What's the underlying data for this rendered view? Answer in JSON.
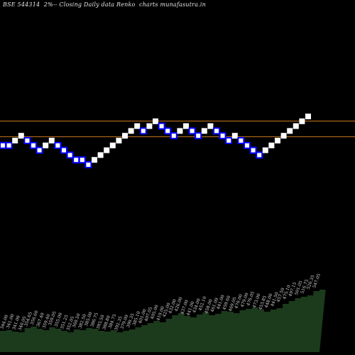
{
  "header": {
    "title": "BSE 544314  2%-- Closing Daily data Renko  charts munafasutra.in"
  },
  "colors": {
    "background": "#000000",
    "up_brick": "#ffffff",
    "down_brick": "#0000ff",
    "down_brick_fill": "#ffffff",
    "level_line": "#c8781e",
    "volume_fill": "#1c3a1c",
    "label": "#d8d8d8"
  },
  "chart_data": {
    "type": "renko",
    "brick_size_pct": 2,
    "levels": [
      489.4,
      460.1
    ],
    "bricks": [
      {
        "dir": "down",
        "price": 444.0
      },
      {
        "dir": "down",
        "price": 444.0
      },
      {
        "dir": "up",
        "price": 453.0
      },
      {
        "dir": "up",
        "price": 462.0
      },
      {
        "dir": "down",
        "price": 453.0
      },
      {
        "dir": "down",
        "price": 444.0
      },
      {
        "dir": "down",
        "price": 435.0
      },
      {
        "dir": "up",
        "price": 444.0
      },
      {
        "dir": "up",
        "price": 453.0
      },
      {
        "dir": "down",
        "price": 444.0
      },
      {
        "dir": "down",
        "price": 435.0
      },
      {
        "dir": "down",
        "price": 426.0
      },
      {
        "dir": "down",
        "price": 417.0
      },
      {
        "dir": "down",
        "price": 417.0
      },
      {
        "dir": "down",
        "price": 408.0
      },
      {
        "dir": "up",
        "price": 417.0
      },
      {
        "dir": "up",
        "price": 426.0
      },
      {
        "dir": "up",
        "price": 435.0
      },
      {
        "dir": "up",
        "price": 444.0
      },
      {
        "dir": "up",
        "price": 453.0
      },
      {
        "dir": "up",
        "price": 462.0
      },
      {
        "dir": "up",
        "price": 471.0
      },
      {
        "dir": "up",
        "price": 480.0
      },
      {
        "dir": "down",
        "price": 471.0
      },
      {
        "dir": "up",
        "price": 480.0
      },
      {
        "dir": "up",
        "price": 489.0
      },
      {
        "dir": "down",
        "price": 480.0
      },
      {
        "dir": "down",
        "price": 471.0
      },
      {
        "dir": "down",
        "price": 462.0
      },
      {
        "dir": "up",
        "price": 471.0
      },
      {
        "dir": "up",
        "price": 480.0
      },
      {
        "dir": "down",
        "price": 471.0
      },
      {
        "dir": "down",
        "price": 462.0
      },
      {
        "dir": "up",
        "price": 471.0
      },
      {
        "dir": "up",
        "price": 480.0
      },
      {
        "dir": "down",
        "price": 471.0
      },
      {
        "dir": "down",
        "price": 462.0
      },
      {
        "dir": "down",
        "price": 453.0
      },
      {
        "dir": "up",
        "price": 462.0
      },
      {
        "dir": "down",
        "price": 453.0
      },
      {
        "dir": "down",
        "price": 444.0
      },
      {
        "dir": "down",
        "price": 435.0
      },
      {
        "dir": "down",
        "price": 426.0
      },
      {
        "dir": "up",
        "price": 435.0
      },
      {
        "dir": "up",
        "price": 444.0
      },
      {
        "dir": "up",
        "price": 453.0
      },
      {
        "dir": "up",
        "price": 462.0
      },
      {
        "dir": "up",
        "price": 471.0
      },
      {
        "dir": "up",
        "price": 480.0
      },
      {
        "dir": "up",
        "price": 489.0
      },
      {
        "dir": "up",
        "price": 498.0
      }
    ],
    "labels": [
      "344.00",
      "341.00",
      "341.00",
      "340.05",
      "354.65",
      "356.60",
      "367.40",
      "359.40",
      "359.05",
      "355.00",
      "351.25",
      "352.05",
      "360.50",
      "382.50",
      "385.00",
      "386.75",
      "393.50",
      "388.80",
      "384.75",
      "392.35",
      "379.00",
      "390.35",
      "385.10",
      "401.00",
      "407.05",
      "405.00",
      "410.00",
      "425.00",
      "432.00",
      "426.00",
      "437.00",
      "441.00",
      "434.00",
      "452.10",
      "458.00",
      "461.00",
      "441.00",
      "459.60",
      "469.05",
      "470.00",
      "479.00",
      "476.05",
      "473.00",
      "453.85",
      "448.00",
      "441.50",
      "457.50",
      "475.10",
      "497.15",
      "501.05",
      "516.75",
      "520.35",
      "547.05"
    ],
    "volume": [
      30,
      31,
      29,
      28,
      34,
      36,
      33,
      31,
      35,
      33,
      30,
      28,
      32,
      31,
      34,
      33,
      30,
      29,
      31,
      28,
      30,
      32,
      35,
      38,
      41,
      44,
      42,
      47,
      52,
      55,
      51,
      49,
      53,
      56,
      52,
      54,
      58,
      57,
      55,
      59,
      61,
      63,
      60,
      57,
      60,
      62,
      68,
      72,
      76,
      78,
      80,
      86,
      88
    ]
  }
}
